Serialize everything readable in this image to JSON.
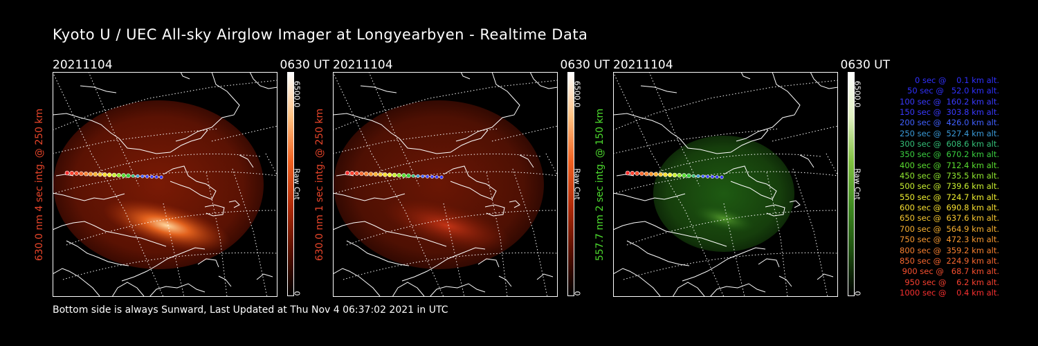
{
  "title": "Kyoto U / UEC All-sky Airglow Imager at Longyearbyen - Realtime Data",
  "footer": "Bottom side is always Sunward, Last Updated at Thu Nov  4 06:37:02 2021 in UTC",
  "panels": [
    {
      "date": "20211104",
      "time": "0630 UT",
      "ylabel": "630.0 nm 4 sec intg. @ 250 km",
      "ylabel_color": "#e8452a",
      "cbar_max": "6500.0",
      "cbar_min": "0",
      "cbar_unit": "Raw Cnt",
      "color": "red"
    },
    {
      "date": "20211104",
      "time": "0630 UT",
      "ylabel": "630.0 nm 1 sec intg. @ 250 km",
      "ylabel_color": "#e8452a",
      "cbar_max": "6500.0",
      "cbar_min": "0",
      "cbar_unit": "Raw Cnt",
      "color": "red"
    },
    {
      "date": "20211104",
      "time": "0630 UT",
      "ylabel": "557.7 nm 2 sec intg. @ 150 km",
      "ylabel_color": "#4ddc2e",
      "cbar_max": "6500.0",
      "cbar_min": "0",
      "cbar_unit": "Raw Cnt",
      "color": "green"
    }
  ],
  "legend": [
    {
      "text": "   0 sec @    0.1 km alt.",
      "color": "#3030ff"
    },
    {
      "text": "  50 sec @   52.0 km alt.",
      "color": "#3030ff"
    },
    {
      "text": " 100 sec @  160.2 km alt.",
      "color": "#3a3aff"
    },
    {
      "text": " 150 sec @  303.8 km alt.",
      "color": "#3a3aff"
    },
    {
      "text": " 200 sec @  426.0 km alt.",
      "color": "#4060ff"
    },
    {
      "text": " 250 sec @  527.4 km alt.",
      "color": "#3a9ad8"
    },
    {
      "text": " 300 sec @  608.6 km alt.",
      "color": "#34c078"
    },
    {
      "text": " 350 sec @  670.2 km alt.",
      "color": "#3ad040"
    },
    {
      "text": " 400 sec @  712.4 km alt.",
      "color": "#5ade30"
    },
    {
      "text": " 450 sec @  735.5 km alt.",
      "color": "#90e830"
    },
    {
      "text": " 500 sec @  739.6 km alt.",
      "color": "#c8f030"
    },
    {
      "text": " 550 sec @  724.7 km alt.",
      "color": "#f0f030"
    },
    {
      "text": " 600 sec @  690.8 km alt.",
      "color": "#f8e030"
    },
    {
      "text": " 650 sec @  637.6 km alt.",
      "color": "#f8c830"
    },
    {
      "text": " 700 sec @  564.9 km alt.",
      "color": "#f8b030"
    },
    {
      "text": " 750 sec @  472.3 km alt.",
      "color": "#f89830"
    },
    {
      "text": " 800 sec @  359.2 km alt.",
      "color": "#f88030"
    },
    {
      "text": " 850 sec @  224.9 km alt.",
      "color": "#f86830"
    },
    {
      "text": " 900 sec @   68.7 km alt.",
      "color": "#f85030"
    },
    {
      "text": " 950 sec @    6.2 km alt.",
      "color": "#f84030"
    },
    {
      "text": "1000 sec @    0.4 km alt.",
      "color": "#f83030"
    }
  ]
}
